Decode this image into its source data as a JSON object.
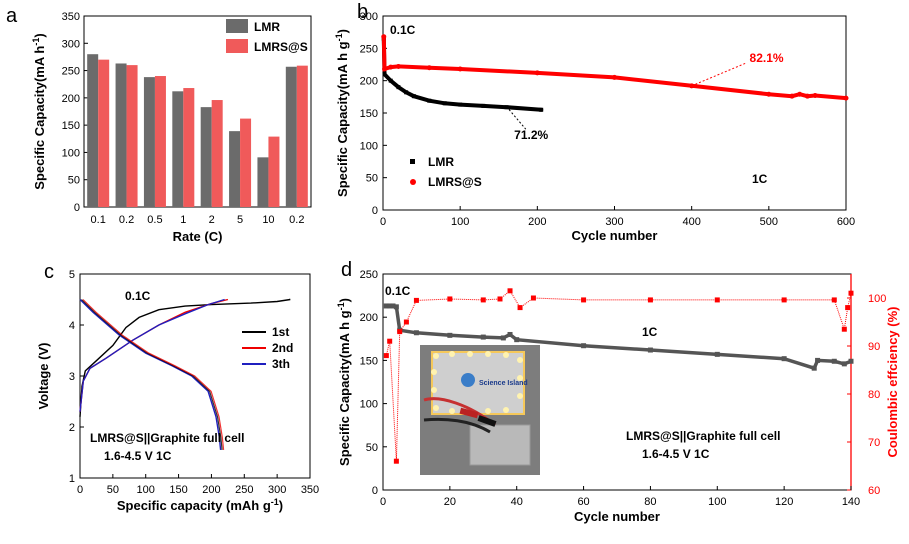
{
  "chart_data": [
    {
      "panel": "a",
      "type": "bar",
      "title": "",
      "xlabel": "Rate (C)",
      "ylabel": "Specific Capacity(mA h",
      "ylabel_unit_sup": "-1",
      "ylabel_close": ")",
      "ylim": [
        0,
        350
      ],
      "yticks": [
        0,
        50,
        100,
        150,
        200,
        250,
        300,
        350
      ],
      "categories": [
        "0.1",
        "0.2",
        "0.5",
        "1",
        "2",
        "5",
        "10",
        "0.2"
      ],
      "series": [
        {
          "name": "LMR",
          "color": "#6b6b6b",
          "values": [
            280,
            263,
            238,
            212,
            183,
            139,
            91,
            257
          ]
        },
        {
          "name": "LMRS@S",
          "color": "#f05a5a",
          "values": [
            270,
            260,
            240,
            218,
            196,
            162,
            129,
            259
          ]
        }
      ],
      "legend": "top-right"
    },
    {
      "panel": "b",
      "type": "scatter",
      "xlabel": "Cycle number",
      "ylabel": "Specific Capacity(mA h g",
      "ylabel_unit_sup": "-1",
      "ylabel_close": ")",
      "xlim": [
        0,
        600
      ],
      "ylim": [
        0,
        300
      ],
      "xticks": [
        0,
        100,
        200,
        300,
        400,
        500,
        600
      ],
      "yticks": [
        0,
        50,
        100,
        150,
        200,
        250,
        300
      ],
      "series": [
        {
          "name": "LMR",
          "color": "#000000",
          "points": [
            [
              1,
              265
            ],
            [
              2,
              210
            ],
            [
              10,
              200
            ],
            [
              20,
              190
            ],
            [
              30,
              182
            ],
            [
              40,
              176
            ],
            [
              60,
              169
            ],
            [
              80,
              165
            ],
            [
              100,
              163
            ],
            [
              130,
              161
            ],
            [
              160,
              159
            ],
            [
              205,
              155
            ]
          ]
        },
        {
          "name": "LMRS@S",
          "color": "#ff0000",
          "points": [
            [
              1,
              268
            ],
            [
              2,
              218
            ],
            [
              10,
              221
            ],
            [
              20,
              222
            ],
            [
              60,
              220
            ],
            [
              100,
              218
            ],
            [
              200,
              212
            ],
            [
              300,
              205
            ],
            [
              400,
              192
            ],
            [
              500,
              179
            ],
            [
              530,
              176
            ],
            [
              540,
              179
            ],
            [
              550,
              176
            ],
            [
              560,
              177
            ],
            [
              600,
              173
            ]
          ]
        }
      ],
      "annotations": {
        "rate_initial": "0.1C",
        "rate_main": "1C",
        "lmr_retention": "71.2%",
        "lmrs_retention": "82.1%"
      },
      "legend": "bottom-left"
    },
    {
      "panel": "c",
      "type": "line",
      "xlabel": "Specific capacity",
      "xlabel_unit": "(mAh g",
      "xlabel_unit_sup": "-1",
      "xlabel_close": ")",
      "ylabel": "Voltage (V)",
      "xlim": [
        0,
        350
      ],
      "ylim": [
        1,
        5
      ],
      "xticks": [
        0,
        50,
        100,
        150,
        200,
        250,
        300,
        350
      ],
      "yticks": [
        1,
        2,
        3,
        4,
        5
      ],
      "series": [
        {
          "name": "1st",
          "color": "#000000",
          "points": [
            [
              0,
              2.2
            ],
            [
              3,
              2.8
            ],
            [
              8,
              3.1
            ],
            [
              25,
              3.3
            ],
            [
              50,
              3.6
            ],
            [
              70,
              3.95
            ],
            [
              90,
              4.15
            ],
            [
              120,
              4.3
            ],
            [
              160,
              4.37
            ],
            [
              200,
              4.4
            ],
            [
              260,
              4.43
            ],
            [
              300,
              4.46
            ],
            [
              320,
              4.5
            ],
            [
              318,
              4.5
            ]
          ]
        },
        {
          "name": "2nd",
          "color": "#ee0000",
          "points": [
            [
              0,
              2.3
            ],
            [
              5,
              2.9
            ],
            [
              15,
              3.15
            ],
            [
              40,
              3.35
            ],
            [
              80,
              3.7
            ],
            [
              120,
              4.0
            ],
            [
              160,
              4.25
            ],
            [
              200,
              4.42
            ],
            [
              225,
              4.5
            ]
          ]
        },
        {
          "name": "3th",
          "color": "#1f1fbf",
          "points": [
            [
              0,
              2.3
            ],
            [
              5,
              2.9
            ],
            [
              15,
              3.15
            ],
            [
              40,
              3.35
            ],
            [
              80,
              3.7
            ],
            [
              120,
              4.0
            ],
            [
              160,
              4.22
            ],
            [
              195,
              4.4
            ],
            [
              220,
              4.5
            ]
          ]
        },
        {
          "name": "discharge",
          "color": "#1f1fbf",
          "points": [
            [
              0,
              4.5
            ],
            [
              20,
              4.25
            ],
            [
              60,
              3.8
            ],
            [
              100,
              3.45
            ],
            [
              140,
              3.2
            ],
            [
              170,
              3.0
            ],
            [
              195,
              2.7
            ],
            [
              207,
              2.2
            ],
            [
              212,
              1.8
            ],
            [
              214,
              1.55
            ]
          ]
        }
      ],
      "annotations": {
        "rate": "0.1C",
        "cell_label": "LMRS@S||Graphite  full cell",
        "cell_cond": "1.6-4.5 V   1C"
      },
      "legend": "right"
    },
    {
      "panel": "d",
      "type": "scatter",
      "xlabel": "Cycle number",
      "ylabel": "Specific Capacity(mA h g",
      "ylabel_unit_sup": "-1",
      "ylabel_close": ")",
      "ylabel_right": "Coulombic effciency (%)",
      "xlim": [
        0,
        140
      ],
      "ylim": [
        0,
        250
      ],
      "ylim_right": [
        60,
        105
      ],
      "xticks": [
        0,
        20,
        40,
        60,
        80,
        100,
        120,
        140
      ],
      "xtick_labels": [
        "0",
        "20",
        "40",
        "60",
        "80",
        "100",
        "120",
        "140"
      ],
      "yticks": [
        0,
        50,
        100,
        150,
        200,
        250
      ],
      "yticks_right": [
        60,
        70,
        80,
        90,
        100
      ],
      "series": [
        {
          "name": "capacity",
          "color": "#555555",
          "points": [
            [
              1,
              213
            ],
            [
              2,
              213
            ],
            [
              3,
              213
            ],
            [
              4,
              212
            ],
            [
              5,
              185
            ],
            [
              10,
              182
            ],
            [
              20,
              179
            ],
            [
              30,
              177
            ],
            [
              36,
              176
            ],
            [
              38,
              180
            ],
            [
              40,
              174
            ],
            [
              60,
              167
            ],
            [
              80,
              162
            ],
            [
              100,
              157
            ],
            [
              120,
              152
            ],
            [
              129,
              141
            ],
            [
              130,
              150
            ],
            [
              135,
              149
            ],
            [
              138,
              146
            ],
            [
              140,
              149
            ]
          ]
        },
        {
          "name": "coulombic",
          "axis": "right",
          "color": "#ff0000",
          "points": [
            [
              1,
              88
            ],
            [
              2,
              91
            ],
            [
              4,
              66
            ],
            [
              5,
              93
            ],
            [
              7,
              95
            ],
            [
              10,
              99.5
            ],
            [
              20,
              99.8
            ],
            [
              30,
              99.6
            ],
            [
              35,
              99.8
            ],
            [
              38,
              101.5
            ],
            [
              41,
              98
            ],
            [
              45,
              100
            ],
            [
              60,
              99.6
            ],
            [
              80,
              99.6
            ],
            [
              100,
              99.6
            ],
            [
              120,
              99.6
            ],
            [
              135,
              99.6
            ],
            [
              138,
              93.5
            ],
            [
              139,
              98
            ],
            [
              140,
              101
            ]
          ]
        }
      ],
      "annotations": {
        "rate_initial": "0.1C",
        "rate_main": "1C",
        "cell_label": "LMRS@S||Graphite  full cell",
        "cell_cond": "1.6-4.5 V   1C",
        "photo_text": "Science Island"
      },
      "legend": "none"
    }
  ]
}
